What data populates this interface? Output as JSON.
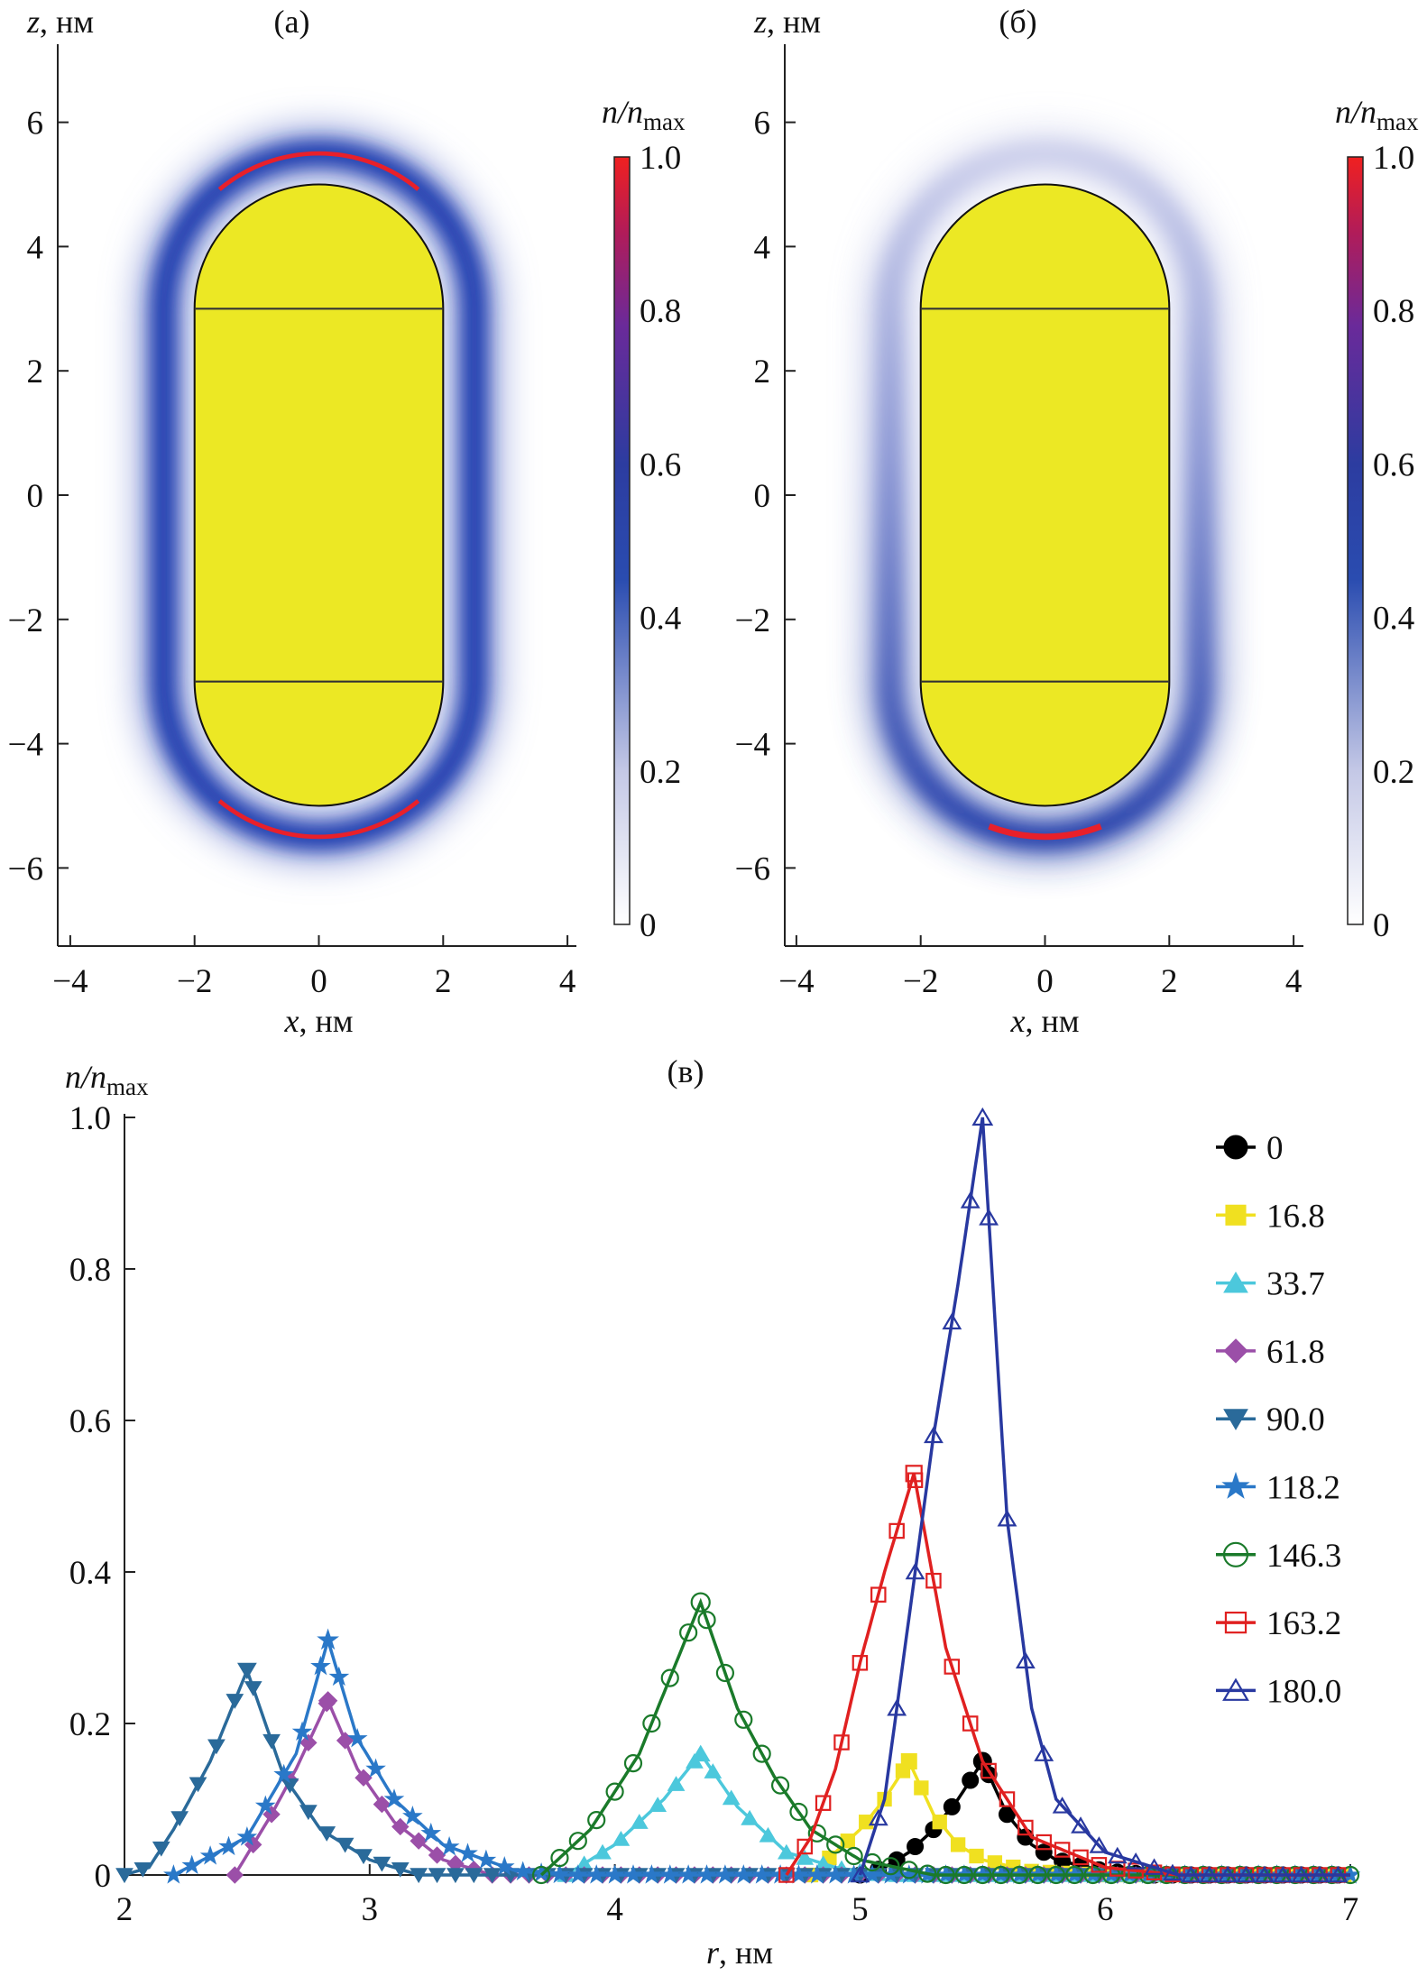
{
  "panels": [
    {
      "label": "(а)",
      "x_var": "x",
      "x_unit": ", нм",
      "z_var": "z",
      "z_unit": ", нм",
      "x_ticks": [
        -4,
        -2,
        0,
        2,
        4
      ],
      "x_tick_labels": [
        "−4",
        "−2",
        "0",
        "2",
        "4"
      ],
      "z_ticks": [
        6,
        4,
        2,
        0,
        -2,
        -4,
        -6
      ],
      "z_tick_labels": [
        "6",
        "4",
        "2",
        "0",
        "−2",
        "−4",
        "−6"
      ],
      "colorbar": {
        "title_main": "n/n",
        "title_sub": "max",
        "ticks": [
          1.0,
          0.8,
          0.6,
          0.4,
          0.2,
          0
        ],
        "tick_labels": [
          "1.0",
          "0.8",
          "0.6",
          "0.4",
          "0.2",
          "0"
        ]
      }
    },
    {
      "label": "(б)",
      "x_var": "x",
      "x_unit": ", нм",
      "z_var": "z",
      "z_unit": ", нм",
      "x_ticks": [
        -4,
        -2,
        0,
        2,
        4
      ],
      "x_tick_labels": [
        "−4",
        "−2",
        "0",
        "2",
        "4"
      ],
      "z_ticks": [
        6,
        4,
        2,
        0,
        -2,
        -4,
        -6
      ],
      "z_tick_labels": [
        "6",
        "4",
        "2",
        "0",
        "−2",
        "−4",
        "−6"
      ],
      "colorbar": {
        "title_main": "n/n",
        "title_sub": "max",
        "ticks": [
          1.0,
          0.8,
          0.6,
          0.4,
          0.2,
          0
        ],
        "tick_labels": [
          "1.0",
          "0.8",
          "0.6",
          "0.4",
          "0.2",
          "0"
        ]
      }
    }
  ],
  "colors": {
    "particle": "#ece824",
    "halo": "#2240b0",
    "peak": "#e8202a"
  },
  "chart_data": {
    "type": "line",
    "title": "(в)",
    "xlabel_var": "r",
    "xlabel_unit": ", нм",
    "ylabel_main": "n/n",
    "ylabel_sub": "max",
    "xlim": [
      2,
      7
    ],
    "ylim": [
      0,
      1.0
    ],
    "x_ticks": [
      2,
      3,
      4,
      5,
      6,
      7
    ],
    "x_tick_labels": [
      "2",
      "3",
      "4",
      "5",
      "6",
      "7"
    ],
    "y_ticks": [
      0,
      0.2,
      0.4,
      0.6,
      0.8,
      1.0
    ],
    "y_tick_labels": [
      "0",
      "0.2",
      "0.4",
      "0.6",
      "0.8",
      "1.0"
    ],
    "legend_position": "top-right",
    "series": [
      {
        "name": "0",
        "color": "#000000",
        "marker": "circle-filled",
        "points": [
          [
            5.0,
            0
          ],
          [
            5.1,
            0.01
          ],
          [
            5.2,
            0.03
          ],
          [
            5.3,
            0.06
          ],
          [
            5.4,
            0.1
          ],
          [
            5.5,
            0.15
          ],
          [
            5.6,
            0.08
          ],
          [
            5.7,
            0.04
          ],
          [
            5.8,
            0.02
          ],
          [
            6.0,
            0.005
          ],
          [
            6.2,
            0
          ]
        ]
      },
      {
        "name": "16.8",
        "color": "#f0e020",
        "marker": "square-filled",
        "points": [
          [
            4.8,
            0
          ],
          [
            4.9,
            0.03
          ],
          [
            5.0,
            0.06
          ],
          [
            5.1,
            0.1
          ],
          [
            5.2,
            0.15
          ],
          [
            5.3,
            0.08
          ],
          [
            5.4,
            0.04
          ],
          [
            5.5,
            0.02
          ],
          [
            5.7,
            0.005
          ],
          [
            6.0,
            0
          ]
        ]
      },
      {
        "name": "33.7",
        "color": "#4cc8dc",
        "marker": "triangle-filled",
        "points": [
          [
            3.8,
            0
          ],
          [
            4.0,
            0.04
          ],
          [
            4.2,
            0.1
          ],
          [
            4.35,
            0.16
          ],
          [
            4.5,
            0.09
          ],
          [
            4.7,
            0.03
          ],
          [
            4.9,
            0.01
          ],
          [
            5.1,
            0
          ]
        ]
      },
      {
        "name": "61.8",
        "color": "#9b4fa8",
        "marker": "diamond-filled",
        "points": [
          [
            2.45,
            0
          ],
          [
            2.6,
            0.08
          ],
          [
            2.7,
            0.14
          ],
          [
            2.83,
            0.23
          ],
          [
            2.95,
            0.14
          ],
          [
            3.1,
            0.07
          ],
          [
            3.3,
            0.02
          ],
          [
            3.5,
            0
          ]
        ]
      },
      {
        "name": "90.0",
        "color": "#2a6a9a",
        "marker": "triangle-down-filled",
        "points": [
          [
            2.0,
            0
          ],
          [
            2.1,
            0.01
          ],
          [
            2.2,
            0.06
          ],
          [
            2.35,
            0.15
          ],
          [
            2.5,
            0.27
          ],
          [
            2.65,
            0.13
          ],
          [
            2.8,
            0.06
          ],
          [
            3.0,
            0.02
          ],
          [
            3.2,
            0
          ]
        ]
      },
      {
        "name": "118.2",
        "color": "#2a78c8",
        "marker": "star-filled",
        "points": [
          [
            2.2,
            0
          ],
          [
            2.5,
            0.05
          ],
          [
            2.7,
            0.16
          ],
          [
            2.83,
            0.31
          ],
          [
            2.95,
            0.18
          ],
          [
            3.1,
            0.1
          ],
          [
            3.3,
            0.04
          ],
          [
            3.6,
            0.005
          ],
          [
            3.8,
            0
          ]
        ]
      },
      {
        "name": "146.3",
        "color": "#1a7a2a",
        "marker": "circle-open",
        "points": [
          [
            3.7,
            0
          ],
          [
            3.9,
            0.06
          ],
          [
            4.1,
            0.16
          ],
          [
            4.25,
            0.28
          ],
          [
            4.35,
            0.36
          ],
          [
            4.5,
            0.22
          ],
          [
            4.65,
            0.13
          ],
          [
            4.8,
            0.06
          ],
          [
            5.0,
            0.02
          ],
          [
            5.3,
            0
          ]
        ]
      },
      {
        "name": "163.2",
        "color": "#e02020",
        "marker": "square-open",
        "points": [
          [
            4.7,
            0
          ],
          [
            4.8,
            0.05
          ],
          [
            4.9,
            0.14
          ],
          [
            5.0,
            0.28
          ],
          [
            5.1,
            0.4
          ],
          [
            5.22,
            0.53
          ],
          [
            5.35,
            0.3
          ],
          [
            5.5,
            0.15
          ],
          [
            5.7,
            0.05
          ],
          [
            6.0,
            0.01
          ],
          [
            6.3,
            0
          ]
        ]
      },
      {
        "name": "180.0",
        "color": "#2838a0",
        "marker": "triangle-open",
        "points": [
          [
            5.0,
            0
          ],
          [
            5.1,
            0.1
          ],
          [
            5.2,
            0.34
          ],
          [
            5.3,
            0.58
          ],
          [
            5.4,
            0.78
          ],
          [
            5.5,
            1.0
          ],
          [
            5.6,
            0.47
          ],
          [
            5.7,
            0.22
          ],
          [
            5.8,
            0.1
          ],
          [
            6.0,
            0.03
          ],
          [
            6.3,
            0
          ]
        ]
      }
    ]
  }
}
